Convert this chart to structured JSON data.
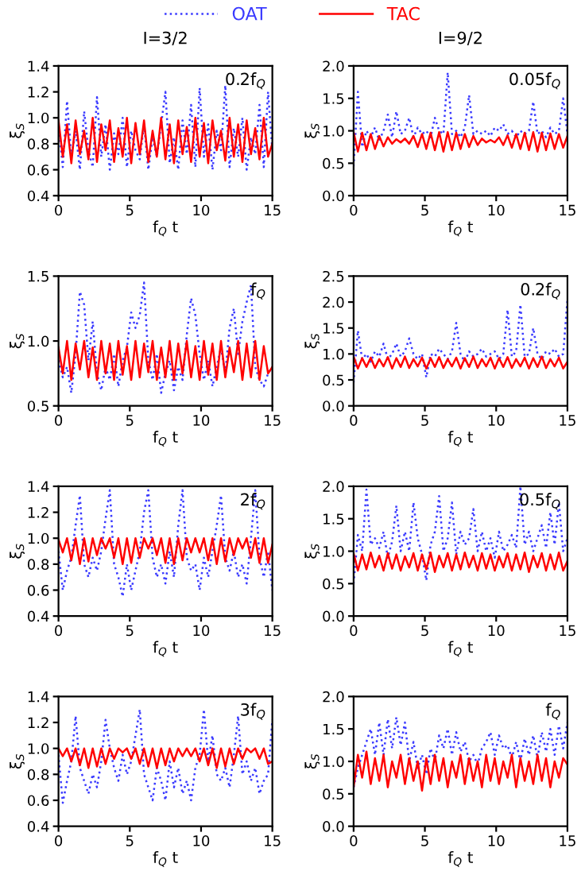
{
  "chart_data": [
    {
      "type": "line",
      "title": "I=3/2",
      "xlabel": "f$_{Q}$ t",
      "ylabel": "ξ$_{S}$",
      "annotations": [
        "0.2f$_{Q}$"
      ],
      "xlim": [
        0,
        15
      ],
      "xticks": [
        0,
        5,
        10,
        15
      ],
      "ylim": [
        0.4,
        1.4
      ],
      "yticks": [
        0.4,
        0.6,
        0.8,
        {
          "value": 1,
          "label": "1.0"
        },
        1.2,
        1.4
      ],
      "grid": false,
      "legend": "top",
      "x": [
        0,
        0.3,
        0.6,
        0.9,
        1.2,
        1.5,
        1.8,
        2.1,
        2.4,
        2.7,
        3.0,
        3.3,
        3.6,
        3.9,
        4.2,
        4.5,
        4.8,
        5.1,
        5.4,
        5.7,
        6.0,
        6.3,
        6.6,
        6.9,
        7.2,
        7.5,
        7.8,
        8.1,
        8.4,
        8.7,
        9.0,
        9.3,
        9.6,
        9.9,
        10.2,
        10.5,
        10.8,
        11.1,
        11.4,
        11.7,
        12.0,
        12.3,
        12.6,
        12.9,
        13.2,
        13.5,
        13.8,
        14.1,
        14.4,
        14.7,
        15.0
      ],
      "series": [
        {
          "name": "OAT",
          "color": "#3a3aff",
          "line_style": "dotted",
          "values": [
            0.95,
            0.62,
            1.13,
            0.7,
            0.9,
            0.6,
            1.05,
            0.75,
            0.62,
            1.16,
            0.7,
            0.95,
            0.6,
            0.88,
            0.72,
            1.0,
            0.62,
            0.9,
            0.75,
            0.68,
            0.95,
            0.6,
            0.85,
            0.7,
            0.95,
            1.2,
            0.65,
            0.85,
            0.6,
            0.98,
            0.72,
            1.1,
            0.62,
            1.23,
            0.7,
            0.95,
            0.6,
            0.9,
            0.75,
            1.25,
            0.62,
            0.92,
            0.7,
            1.0,
            0.6,
            0.85,
            0.72,
            1.1,
            0.62,
            1.2,
            0.75
          ]
        },
        {
          "name": "TAC",
          "color": "#ff0000",
          "line_style": "solid",
          "values": [
            0.98,
            0.7,
            0.95,
            0.65,
            0.98,
            0.72,
            0.9,
            0.68,
            1.0,
            0.66,
            0.95,
            0.75,
            0.98,
            0.66,
            0.92,
            0.7,
            1.0,
            0.65,
            0.96,
            0.72,
            0.98,
            0.66,
            0.9,
            0.7,
            1.0,
            0.68,
            0.95,
            0.65,
            0.98,
            0.72,
            0.93,
            0.66,
            1.0,
            0.7,
            0.96,
            0.65,
            0.98,
            0.75,
            0.9,
            0.67,
            1.0,
            0.7,
            0.95,
            0.66,
            0.98,
            0.72,
            0.92,
            0.68,
            1.0,
            0.7,
            0.8
          ]
        }
      ]
    },
    {
      "type": "line",
      "title": "I=9/2",
      "xlabel": "f$_{Q}$ t",
      "ylabel": "ξ$_{S}$",
      "annotations": [
        "0.05f$_{Q}$"
      ],
      "xlim": [
        0,
        15
      ],
      "xticks": [
        0,
        5,
        10,
        15
      ],
      "ylim": [
        0,
        2
      ],
      "yticks": [
        {
          "value": 0,
          "label": "0.0"
        },
        0.5,
        {
          "value": 1,
          "label": "1.0"
        },
        1.5,
        {
          "value": 2,
          "label": "2.0"
        }
      ],
      "grid": false,
      "x": [
        0,
        0.3,
        0.6,
        0.9,
        1.2,
        1.5,
        1.8,
        2.1,
        2.4,
        2.7,
        3.0,
        3.3,
        3.6,
        3.9,
        4.2,
        4.5,
        4.8,
        5.1,
        5.4,
        5.7,
        6.0,
        6.3,
        6.6,
        6.9,
        7.2,
        7.5,
        7.8,
        8.1,
        8.4,
        8.7,
        9.0,
        9.3,
        9.6,
        9.9,
        10.2,
        10.5,
        10.8,
        11.1,
        11.4,
        11.7,
        12.0,
        12.3,
        12.6,
        12.9,
        13.2,
        13.5,
        13.8,
        14.1,
        14.4,
        14.7,
        15.0
      ],
      "series": [
        {
          "color": "#3a3aff",
          "line_style": "dotted",
          "values": [
            0.45,
            1.6,
            0.75,
            1.0,
            0.9,
            1.05,
            0.85,
            1.0,
            1.25,
            0.9,
            1.3,
            0.95,
            1.0,
            1.2,
            0.9,
            1.05,
            0.95,
            1.0,
            0.9,
            1.2,
            1.0,
            0.95,
            1.9,
            0.95,
            1.0,
            0.9,
            1.05,
            1.55,
            0.95,
            1.0,
            0.95,
            1.0,
            0.92,
            1.05,
            1.0,
            1.1,
            0.95,
            1.0,
            0.9,
            1.0,
            0.95,
            1.0,
            1.45,
            0.95,
            1.0,
            0.9,
            1.05,
            0.95,
            1.0,
            1.5,
            0.95
          ]
        },
        {
          "color": "#ff0000",
          "line_style": "solid",
          "values": [
            0.98,
            0.68,
            0.97,
            0.7,
            0.95,
            0.72,
            0.92,
            0.76,
            0.9,
            0.8,
            0.87,
            0.82,
            0.88,
            0.8,
            0.92,
            0.75,
            0.95,
            0.72,
            0.97,
            0.7,
            0.98,
            0.68,
            0.98,
            0.7,
            0.97,
            0.72,
            0.95,
            0.75,
            0.92,
            0.78,
            0.88,
            0.82,
            0.86,
            0.82,
            0.9,
            0.78,
            0.93,
            0.74,
            0.95,
            0.72,
            0.97,
            0.7,
            0.98,
            0.68,
            0.97,
            0.7,
            0.96,
            0.72,
            0.95,
            0.74,
            0.92
          ]
        }
      ]
    },
    {
      "type": "line",
      "xlabel": "f$_{Q}$ t",
      "ylabel": "ξ$_{S}$",
      "annotations": [
        "f$_{Q}$"
      ],
      "xlim": [
        0,
        15
      ],
      "xticks": [
        0,
        5,
        10,
        15
      ],
      "ylim": [
        0.5,
        1.5
      ],
      "yticks": [
        0.5,
        {
          "value": 1,
          "label": "1.0"
        },
        1.5
      ],
      "grid": false,
      "x": [
        0,
        0.3,
        0.6,
        0.9,
        1.2,
        1.5,
        1.8,
        2.1,
        2.4,
        2.7,
        3.0,
        3.3,
        3.6,
        3.9,
        4.2,
        4.5,
        4.8,
        5.1,
        5.4,
        5.7,
        6.0,
        6.3,
        6.6,
        6.9,
        7.2,
        7.5,
        7.8,
        8.1,
        8.4,
        8.7,
        9.0,
        9.3,
        9.6,
        9.9,
        10.2,
        10.5,
        10.8,
        11.1,
        11.4,
        11.7,
        12.0,
        12.3,
        12.6,
        12.9,
        13.2,
        13.5,
        13.8,
        14.1,
        14.4,
        14.7,
        15.0
      ],
      "series": [
        {
          "color": "#3a3aff",
          "line_style": "dotted",
          "values": [
            0.85,
            0.72,
            0.8,
            0.6,
            0.9,
            1.38,
            1.28,
            0.85,
            1.15,
            0.75,
            0.62,
            0.8,
            0.7,
            0.9,
            0.65,
            0.85,
            0.95,
            1.22,
            1.1,
            1.2,
            1.45,
            0.85,
            0.7,
            0.9,
            0.6,
            0.75,
            0.85,
            0.62,
            0.8,
            0.7,
            1.05,
            1.33,
            1.2,
            0.9,
            0.7,
            0.85,
            0.65,
            0.8,
            0.95,
            0.75,
            1.1,
            1.25,
            0.9,
            1.15,
            1.3,
            1.43,
            0.8,
            0.7,
            0.65,
            0.75,
            0.8
          ]
        },
        {
          "color": "#ff0000",
          "line_style": "solid",
          "values": [
            0.95,
            0.75,
            1.0,
            0.7,
            0.98,
            0.78,
            1.0,
            0.72,
            0.95,
            0.7,
            1.0,
            0.75,
            0.98,
            0.7,
            1.0,
            0.74,
            0.96,
            0.7,
            1.0,
            0.72,
            0.98,
            0.76,
            1.0,
            0.7,
            0.95,
            0.72,
            1.0,
            0.7,
            0.98,
            0.75,
            1.0,
            0.72,
            0.96,
            0.7,
            1.0,
            0.74,
            0.98,
            0.7,
            1.0,
            0.72,
            0.95,
            0.76,
            1.0,
            0.7,
            0.98,
            0.72,
            1.0,
            0.7,
            0.96,
            0.75,
            0.8
          ]
        }
      ]
    },
    {
      "type": "line",
      "xlabel": "f$_{Q}$ t",
      "ylabel": "ξ$_{S}$",
      "annotations": [
        "0.2f$_{Q}$"
      ],
      "xlim": [
        0,
        15
      ],
      "xticks": [
        0,
        5,
        10,
        15
      ],
      "ylim": [
        0,
        2.5
      ],
      "yticks": [
        {
          "value": 0,
          "label": "0.0"
        },
        0.5,
        {
          "value": 1,
          "label": "1.0"
        },
        1.5,
        {
          "value": 2,
          "label": "2.0"
        },
        2.5
      ],
      "grid": false,
      "x": [
        0,
        0.3,
        0.6,
        0.9,
        1.2,
        1.5,
        1.8,
        2.1,
        2.4,
        2.7,
        3.0,
        3.3,
        3.6,
        3.9,
        4.2,
        4.5,
        4.8,
        5.1,
        5.4,
        5.7,
        6.0,
        6.3,
        6.6,
        6.9,
        7.2,
        7.5,
        7.8,
        8.1,
        8.4,
        8.7,
        9.0,
        9.3,
        9.6,
        9.9,
        10.2,
        10.5,
        10.8,
        11.1,
        11.4,
        11.7,
        12.0,
        12.3,
        12.6,
        12.9,
        13.2,
        13.5,
        13.8,
        14.1,
        14.4,
        14.7,
        15.0
      ],
      "series": [
        {
          "color": "#3a3aff",
          "line_style": "dotted",
          "values": [
            0.45,
            1.45,
            0.9,
            1.0,
            0.85,
            1.05,
            0.95,
            1.2,
            0.9,
            1.0,
            1.2,
            0.95,
            1.05,
            1.3,
            1.0,
            0.9,
            1.0,
            0.55,
            1.0,
            0.95,
            1.1,
            1.0,
            0.9,
            1.05,
            1.6,
            1.0,
            0.85,
            1.05,
            0.95,
            1.0,
            1.1,
            0.95,
            1.0,
            1.05,
            0.9,
            1.0,
            1.85,
            0.95,
            1.05,
            1.95,
            0.95,
            1.0,
            1.5,
            1.0,
            0.9,
            1.05,
            1.0,
            1.1,
            0.95,
            1.0,
            2.05
          ]
        },
        {
          "color": "#ff0000",
          "line_style": "solid",
          "values": [
            0.95,
            0.72,
            0.92,
            0.75,
            0.93,
            0.73,
            0.9,
            0.76,
            0.94,
            0.72,
            0.92,
            0.75,
            0.95,
            0.73,
            0.9,
            0.76,
            0.93,
            0.72,
            0.92,
            0.75,
            0.94,
            0.73,
            0.9,
            0.76,
            0.93,
            0.72,
            0.92,
            0.75,
            0.95,
            0.73,
            0.9,
            0.76,
            0.93,
            0.72,
            0.92,
            0.75,
            0.94,
            0.73,
            0.9,
            0.76,
            0.93,
            0.72,
            0.92,
            0.75,
            0.95,
            0.73,
            0.9,
            0.76,
            0.93,
            0.72,
            0.85
          ]
        }
      ]
    },
    {
      "type": "line",
      "xlabel": "f$_{Q}$ t",
      "ylabel": "ξ$_{S}$",
      "annotations": [
        "2f$_{Q}$"
      ],
      "xlim": [
        0,
        15
      ],
      "xticks": [
        0,
        5,
        10,
        15
      ],
      "ylim": [
        0.4,
        1.4
      ],
      "yticks": [
        0.4,
        0.6,
        0.8,
        {
          "value": 1,
          "label": "1.0"
        },
        1.2,
        1.4
      ],
      "grid": false,
      "x": [
        0,
        0.3,
        0.6,
        0.9,
        1.2,
        1.5,
        1.8,
        2.1,
        2.4,
        2.7,
        3.0,
        3.3,
        3.6,
        3.9,
        4.2,
        4.5,
        4.8,
        5.1,
        5.4,
        5.7,
        6.0,
        6.3,
        6.6,
        6.9,
        7.2,
        7.5,
        7.8,
        8.1,
        8.4,
        8.7,
        9.0,
        9.3,
        9.6,
        9.9,
        10.2,
        10.5,
        10.8,
        11.1,
        11.4,
        11.7,
        12.0,
        12.3,
        12.6,
        12.9,
        13.2,
        13.5,
        13.8,
        14.1,
        14.4,
        14.7,
        15.0
      ],
      "series": [
        {
          "color": "#3a3aff",
          "line_style": "dotted",
          "values": [
            0.9,
            0.6,
            0.75,
            0.85,
            1.1,
            1.33,
            0.8,
            0.7,
            0.85,
            0.75,
            0.9,
            1.15,
            1.37,
            0.8,
            0.7,
            0.55,
            0.8,
            0.6,
            0.75,
            0.9,
            1.2,
            1.37,
            0.85,
            0.7,
            0.8,
            0.65,
            0.9,
            0.7,
            1.1,
            1.37,
            0.85,
            0.75,
            0.8,
            0.6,
            0.85,
            0.7,
            0.9,
            1.1,
            1.33,
            0.85,
            0.75,
            0.9,
            0.7,
            0.8,
            0.65,
            1.0,
            1.37,
            0.85,
            0.7,
            0.9,
            0.6
          ]
        },
        {
          "color": "#ff0000",
          "line_style": "solid",
          "values": [
            0.99,
            0.89,
            1.0,
            0.83,
            1.0,
            0.8,
            1.0,
            0.82,
            1.0,
            0.87,
            1.0,
            0.92,
            1.0,
            0.85,
            1.0,
            0.8,
            1.0,
            0.81,
            1.0,
            0.85,
            1.0,
            0.92,
            1.0,
            0.87,
            1.0,
            0.81,
            1.0,
            0.8,
            1.0,
            0.83,
            1.0,
            0.89,
            1.0,
            0.89,
            1.0,
            0.83,
            1.0,
            0.8,
            1.0,
            0.82,
            1.0,
            0.87,
            1.0,
            0.92,
            1.0,
            0.85,
            1.0,
            0.81,
            1.0,
            0.81,
            0.95
          ]
        }
      ]
    },
    {
      "type": "line",
      "xlabel": "f$_{Q}$ t",
      "ylabel": "ξ$_{S}$",
      "annotations": [
        "0.5f$_{Q}$"
      ],
      "xlim": [
        0,
        15
      ],
      "xticks": [
        0,
        5,
        10,
        15
      ],
      "ylim": [
        0,
        2
      ],
      "yticks": [
        {
          "value": 0,
          "label": "0.0"
        },
        0.5,
        {
          "value": 1,
          "label": "1.0"
        },
        1.5,
        {
          "value": 2,
          "label": "2.0"
        }
      ],
      "grid": false,
      "x": [
        0,
        0.3,
        0.6,
        0.9,
        1.2,
        1.5,
        1.8,
        2.1,
        2.4,
        2.7,
        3.0,
        3.3,
        3.6,
        3.9,
        4.2,
        4.5,
        4.8,
        5.1,
        5.4,
        5.7,
        6.0,
        6.3,
        6.6,
        6.9,
        7.2,
        7.5,
        7.8,
        8.1,
        8.4,
        8.7,
        9.0,
        9.3,
        9.6,
        9.9,
        10.2,
        10.5,
        10.8,
        11.1,
        11.4,
        11.7,
        12.0,
        12.3,
        12.6,
        12.9,
        13.2,
        13.5,
        13.8,
        14.1,
        14.4,
        14.7,
        15.0
      ],
      "series": [
        {
          "color": "#3a3aff",
          "line_style": "dotted",
          "values": [
            0.5,
            1.25,
            1.0,
            1.95,
            1.1,
            1.2,
            1.05,
            1.3,
            0.9,
            1.15,
            1.7,
            1.0,
            1.3,
            1.0,
            1.75,
            1.2,
            0.95,
            0.55,
            1.1,
            1.3,
            1.85,
            1.0,
            1.2,
            1.75,
            0.95,
            1.3,
            1.1,
            1.2,
            1.65,
            1.0,
            1.3,
            1.0,
            1.2,
            0.9,
            1.3,
            1.0,
            1.1,
            1.25,
            1.05,
            2.0,
            1.1,
            1.3,
            1.0,
            1.2,
            1.4,
            1.05,
            1.6,
            1.1,
            1.75,
            1.0,
            1.2
          ]
        },
        {
          "color": "#ff0000",
          "line_style": "solid",
          "values": [
            0.97,
            0.7,
            0.95,
            0.72,
            0.98,
            0.75,
            0.93,
            0.7,
            0.97,
            0.73,
            0.95,
            0.7,
            0.92,
            0.75,
            0.97,
            0.7,
            0.95,
            0.72,
            0.98,
            0.68,
            0.93,
            0.75,
            0.97,
            0.7,
            0.95,
            0.72,
            0.98,
            0.75,
            0.93,
            0.7,
            0.97,
            0.73,
            0.95,
            0.7,
            0.92,
            0.75,
            0.97,
            0.7,
            0.95,
            0.72,
            0.98,
            0.68,
            0.93,
            0.75,
            0.97,
            0.7,
            0.95,
            0.72,
            0.98,
            0.7,
            0.85
          ]
        }
      ]
    },
    {
      "type": "line",
      "xlabel": "f$_{Q}$ t",
      "ylabel": "ξ$_{S}$",
      "annotations": [
        "3f$_{Q}$"
      ],
      "xlim": [
        0,
        15
      ],
      "xticks": [
        0,
        5,
        10,
        15
      ],
      "ylim": [
        0.4,
        1.4
      ],
      "yticks": [
        0.4,
        0.6,
        0.8,
        {
          "value": 1,
          "label": "1.0"
        },
        1.2,
        1.4
      ],
      "grid": false,
      "x": [
        0,
        0.3,
        0.6,
        0.9,
        1.2,
        1.5,
        1.8,
        2.1,
        2.4,
        2.7,
        3.0,
        3.3,
        3.6,
        3.9,
        4.2,
        4.5,
        4.8,
        5.1,
        5.4,
        5.7,
        6.0,
        6.3,
        6.6,
        6.9,
        7.2,
        7.5,
        7.8,
        8.1,
        8.4,
        8.7,
        9.0,
        9.3,
        9.6,
        9.9,
        10.2,
        10.5,
        10.8,
        11.1,
        11.4,
        11.7,
        12.0,
        12.3,
        12.6,
        12.9,
        13.2,
        13.5,
        13.8,
        14.1,
        14.4,
        14.7,
        15.0
      ],
      "series": [
        {
          "color": "#3a3aff",
          "line_style": "dotted",
          "values": [
            0.95,
            0.58,
            0.75,
            0.9,
            1.25,
            0.85,
            0.75,
            0.65,
            0.8,
            0.7,
            0.9,
            1.22,
            1.0,
            0.85,
            0.75,
            0.95,
            0.8,
            0.9,
            1.1,
            1.3,
            0.8,
            0.7,
            0.6,
            0.85,
            0.75,
            0.6,
            0.9,
            0.7,
            0.85,
            0.65,
            0.75,
            0.6,
            0.85,
            0.95,
            1.3,
            0.9,
            1.1,
            0.8,
            0.75,
            0.85,
            0.7,
            0.95,
            1.25,
            0.8,
            0.9,
            0.75,
            0.85,
            0.65,
            0.75,
            0.8,
            1.22
          ]
        },
        {
          "color": "#ff0000",
          "line_style": "solid",
          "values": [
            1.0,
            0.94,
            1.0,
            0.9,
            1.0,
            0.87,
            1.0,
            0.85,
            1.0,
            0.86,
            1.0,
            0.88,
            1.0,
            0.92,
            1.0,
            0.97,
            1.0,
            0.92,
            1.0,
            0.88,
            1.0,
            0.86,
            1.0,
            0.85,
            1.0,
            0.87,
            1.0,
            0.9,
            1.0,
            0.94,
            1.0,
            0.94,
            1.0,
            0.9,
            1.0,
            0.87,
            1.0,
            0.85,
            1.0,
            0.86,
            1.0,
            0.88,
            1.0,
            0.92,
            1.0,
            0.97,
            1.0,
            0.92,
            1.0,
            0.88,
            0.9
          ]
        }
      ]
    },
    {
      "type": "line",
      "xlabel": "f$_{Q}$ t",
      "ylabel": "ξ$_{S}$",
      "annotations": [
        "f$_{Q}$"
      ],
      "xlim": [
        0,
        15
      ],
      "xticks": [
        0,
        5,
        10,
        15
      ],
      "ylim": [
        0,
        2
      ],
      "yticks": [
        {
          "value": 0,
          "label": "0.0"
        },
        0.5,
        {
          "value": 1,
          "label": "1.0"
        },
        1.5,
        {
          "value": 2,
          "label": "2.0"
        }
      ],
      "grid": false,
      "x": [
        0,
        0.3,
        0.6,
        0.9,
        1.2,
        1.5,
        1.8,
        2.1,
        2.4,
        2.7,
        3.0,
        3.3,
        3.6,
        3.9,
        4.2,
        4.5,
        4.8,
        5.1,
        5.4,
        5.7,
        6.0,
        6.3,
        6.6,
        6.9,
        7.2,
        7.5,
        7.8,
        8.1,
        8.4,
        8.7,
        9.0,
        9.3,
        9.6,
        9.9,
        10.2,
        10.5,
        10.8,
        11.1,
        11.4,
        11.7,
        12.0,
        12.3,
        12.6,
        12.9,
        13.2,
        13.5,
        13.8,
        14.1,
        14.4,
        14.7,
        15.0
      ],
      "series": [
        {
          "color": "#3a3aff",
          "line_style": "dotted",
          "values": [
            0.6,
            0.9,
            1.1,
            1.3,
            1.5,
            1.1,
            1.6,
            1.1,
            1.65,
            1.2,
            1.68,
            1.25,
            1.6,
            1.0,
            1.3,
            0.9,
            1.1,
            0.8,
            1.2,
            1.0,
            1.4,
            1.2,
            1.5,
            1.1,
            1.45,
            1.15,
            1.3,
            1.0,
            1.1,
            0.95,
            1.2,
            1.3,
            1.45,
            1.1,
            1.4,
            1.2,
            1.25,
            1.05,
            1.3,
            1.0,
            1.35,
            1.1,
            1.4,
            1.05,
            1.45,
            1.15,
            1.5,
            1.1,
            1.55,
            1.2,
            1.6
          ]
        },
        {
          "color": "#ff0000",
          "line_style": "solid",
          "values": [
            0.6,
            1.1,
            0.75,
            1.15,
            0.65,
            1.05,
            0.7,
            1.1,
            0.6,
            1.0,
            0.75,
            1.1,
            0.65,
            1.05,
            0.7,
            1.0,
            0.55,
            1.05,
            0.65,
            1.1,
            0.7,
            1.05,
            0.6,
            1.0,
            0.75,
            1.1,
            0.65,
            1.05,
            0.7,
            1.0,
            0.6,
            1.1,
            0.7,
            1.05,
            0.65,
            1.0,
            0.75,
            1.1,
            0.6,
            1.05,
            0.7,
            1.0,
            0.65,
            1.1,
            0.7,
            1.05,
            0.6,
            1.0,
            0.75,
            1.05,
            0.95
          ]
        }
      ]
    }
  ]
}
